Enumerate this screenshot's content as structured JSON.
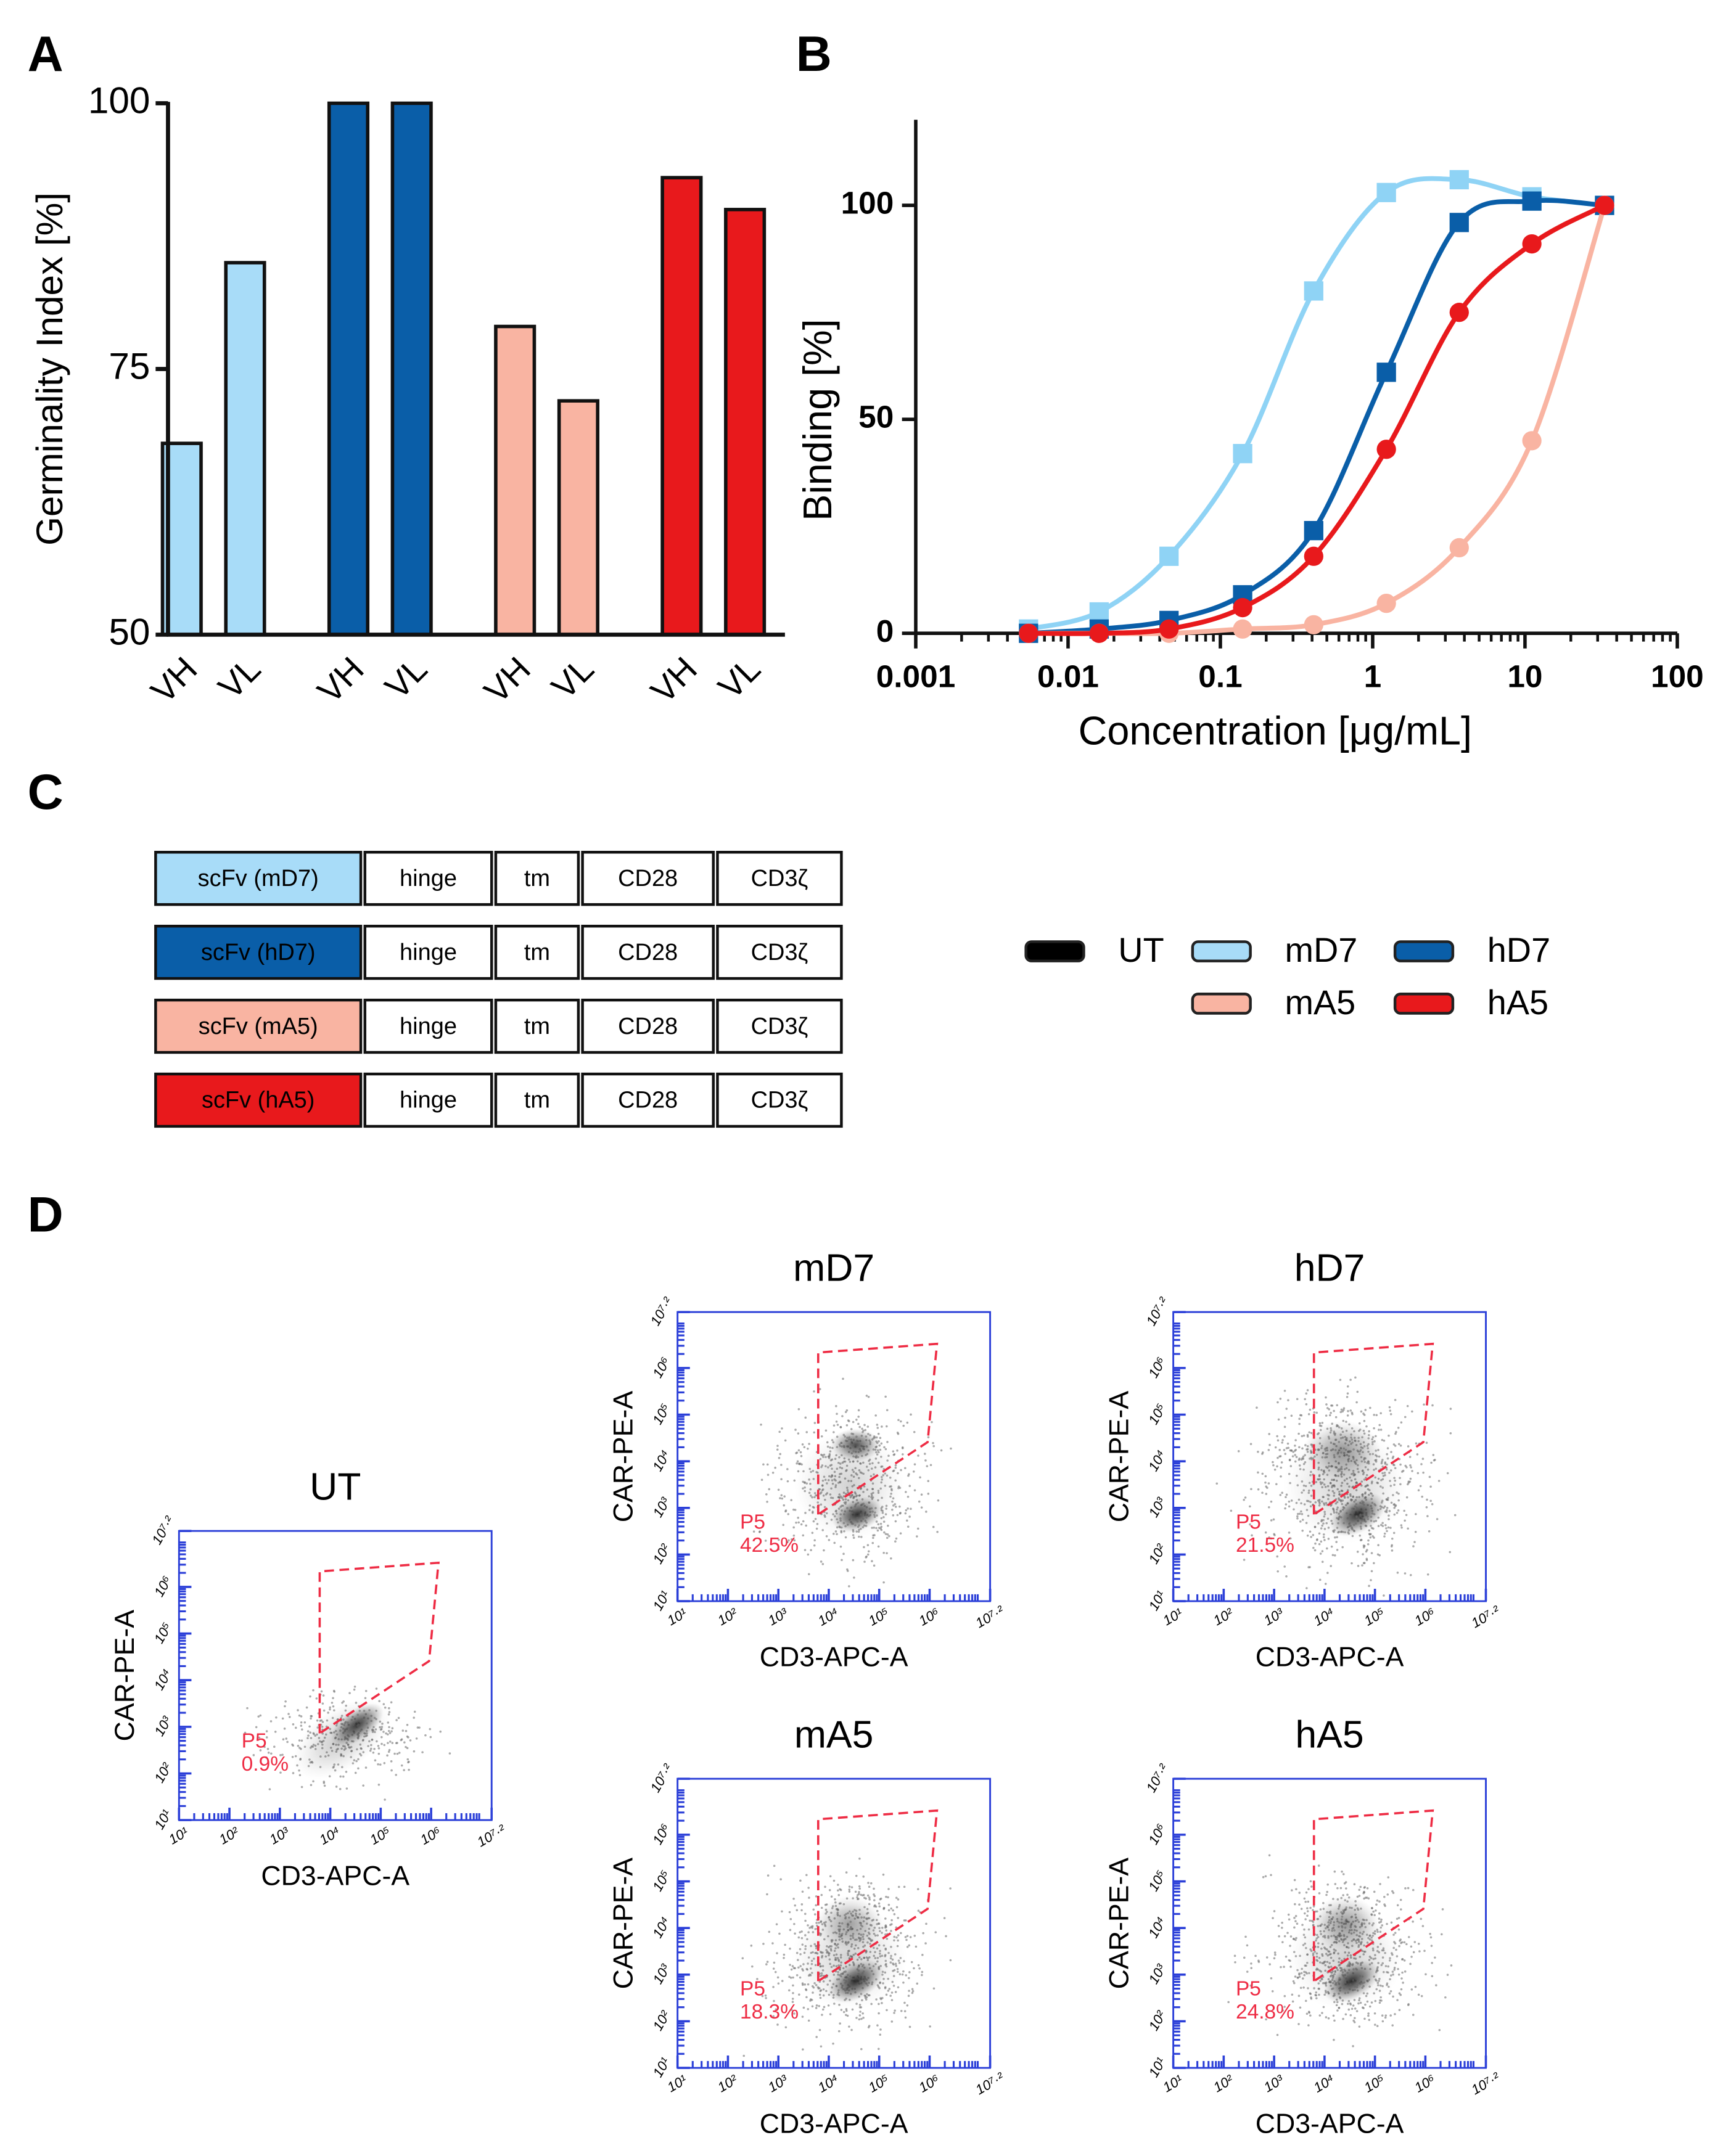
{
  "panels": [
    "A",
    "B",
    "C",
    "D"
  ],
  "chart_data": [
    {
      "type": "bar",
      "ylabel": "Germinality Index [%]",
      "categories": [
        "VH",
        "VL",
        "VH",
        "VL",
        "VH",
        "VL",
        "VH",
        "VL"
      ],
      "values": [
        68,
        85,
        100,
        100,
        79,
        72,
        93,
        90
      ],
      "colors": [
        "#a8dcf8",
        "#a8dcf8",
        "#0a5ea8",
        "#0a5ea8",
        "#f9b4a2",
        "#f9b4a2",
        "#e8191c",
        "#e8191c"
      ],
      "ylim": [
        50,
        100
      ],
      "yticks": [
        50,
        75,
        100
      ]
    },
    {
      "type": "line",
      "xlabel": "Concentration [μg/mL]",
      "ylabel": "Binding [%]",
      "xscale": "log",
      "x": [
        0.0055,
        0.016,
        0.046,
        0.14,
        0.41,
        1.23,
        3.7,
        11.1,
        33.3
      ],
      "xlim": [
        0.001,
        100
      ],
      "xticks": [
        0.001,
        0.01,
        0.1,
        1,
        10,
        100
      ],
      "ylim": [
        0,
        120
      ],
      "yticks": [
        0,
        50,
        100
      ],
      "series": [
        {
          "name": "mD7",
          "color": "#8fd3f5",
          "marker": "square",
          "values": [
            1,
            5,
            18,
            42,
            80,
            103,
            106,
            102,
            100
          ]
        },
        {
          "name": "hD7",
          "color": "#0a5ea8",
          "marker": "square",
          "values": [
            0,
            1,
            3,
            9,
            24,
            61,
            96,
            101,
            100
          ]
        },
        {
          "name": "mA5",
          "color": "#f9b4a2",
          "marker": "circle",
          "values": [
            0,
            0,
            0,
            1,
            2,
            7,
            20,
            45,
            100
          ]
        },
        {
          "name": "hA5",
          "color": "#e8191c",
          "marker": "circle",
          "values": [
            0,
            0,
            1,
            6,
            18,
            43,
            75,
            91,
            100
          ]
        }
      ]
    }
  ],
  "legend": [
    {
      "name": "UT",
      "color": "#000000"
    },
    {
      "name": "mD7",
      "color": "#a8dcf8"
    },
    {
      "name": "hD7",
      "color": "#0a5ea8"
    },
    {
      "name": "mA5",
      "color": "#f9b4a2"
    },
    {
      "name": "hA5",
      "color": "#e8191c"
    }
  ],
  "constructs": [
    {
      "label": "scFv (mD7)",
      "color": "#a8dcf8",
      "domains": [
        "hinge",
        "tm",
        "CD28",
        "CD3ζ"
      ]
    },
    {
      "label": "scFv (hD7)",
      "color": "#0a5ea8",
      "domains": [
        "hinge",
        "tm",
        "CD28",
        "CD3ζ"
      ]
    },
    {
      "label": "scFv (mA5)",
      "color": "#f9b4a2",
      "domains": [
        "hinge",
        "tm",
        "CD28",
        "CD3ζ"
      ]
    },
    {
      "label": "scFv (hA5)",
      "color": "#e8191c",
      "domains": [
        "hinge",
        "tm",
        "CD28",
        "CD3ζ"
      ]
    }
  ],
  "flow": {
    "y_label": "CAR-PE-A",
    "x_label": "CD3-APC-A",
    "lim": [
      1,
      7.2
    ],
    "ticks": [
      {
        "value": 1,
        "label": "10¹"
      },
      {
        "value": 2,
        "label": "10²"
      },
      {
        "value": 3,
        "label": "10³"
      },
      {
        "value": 4,
        "label": "10⁴"
      },
      {
        "value": 5,
        "label": "10⁵"
      },
      {
        "value": 6,
        "label": "10⁶"
      },
      {
        "value": 7.2,
        "label": "10⁷·²"
      }
    ],
    "plots": [
      {
        "title": "UT",
        "gate": "P5",
        "percent": "0.9%"
      },
      {
        "title": "mD7",
        "gate": "P5",
        "percent": "42.5%"
      },
      {
        "title": "hD7",
        "gate": "P5",
        "percent": "21.5%"
      },
      {
        "title": "mA5",
        "gate": "P5",
        "percent": "18.3%"
      },
      {
        "title": "hA5",
        "gate": "P5",
        "percent": "24.8%"
      }
    ]
  }
}
